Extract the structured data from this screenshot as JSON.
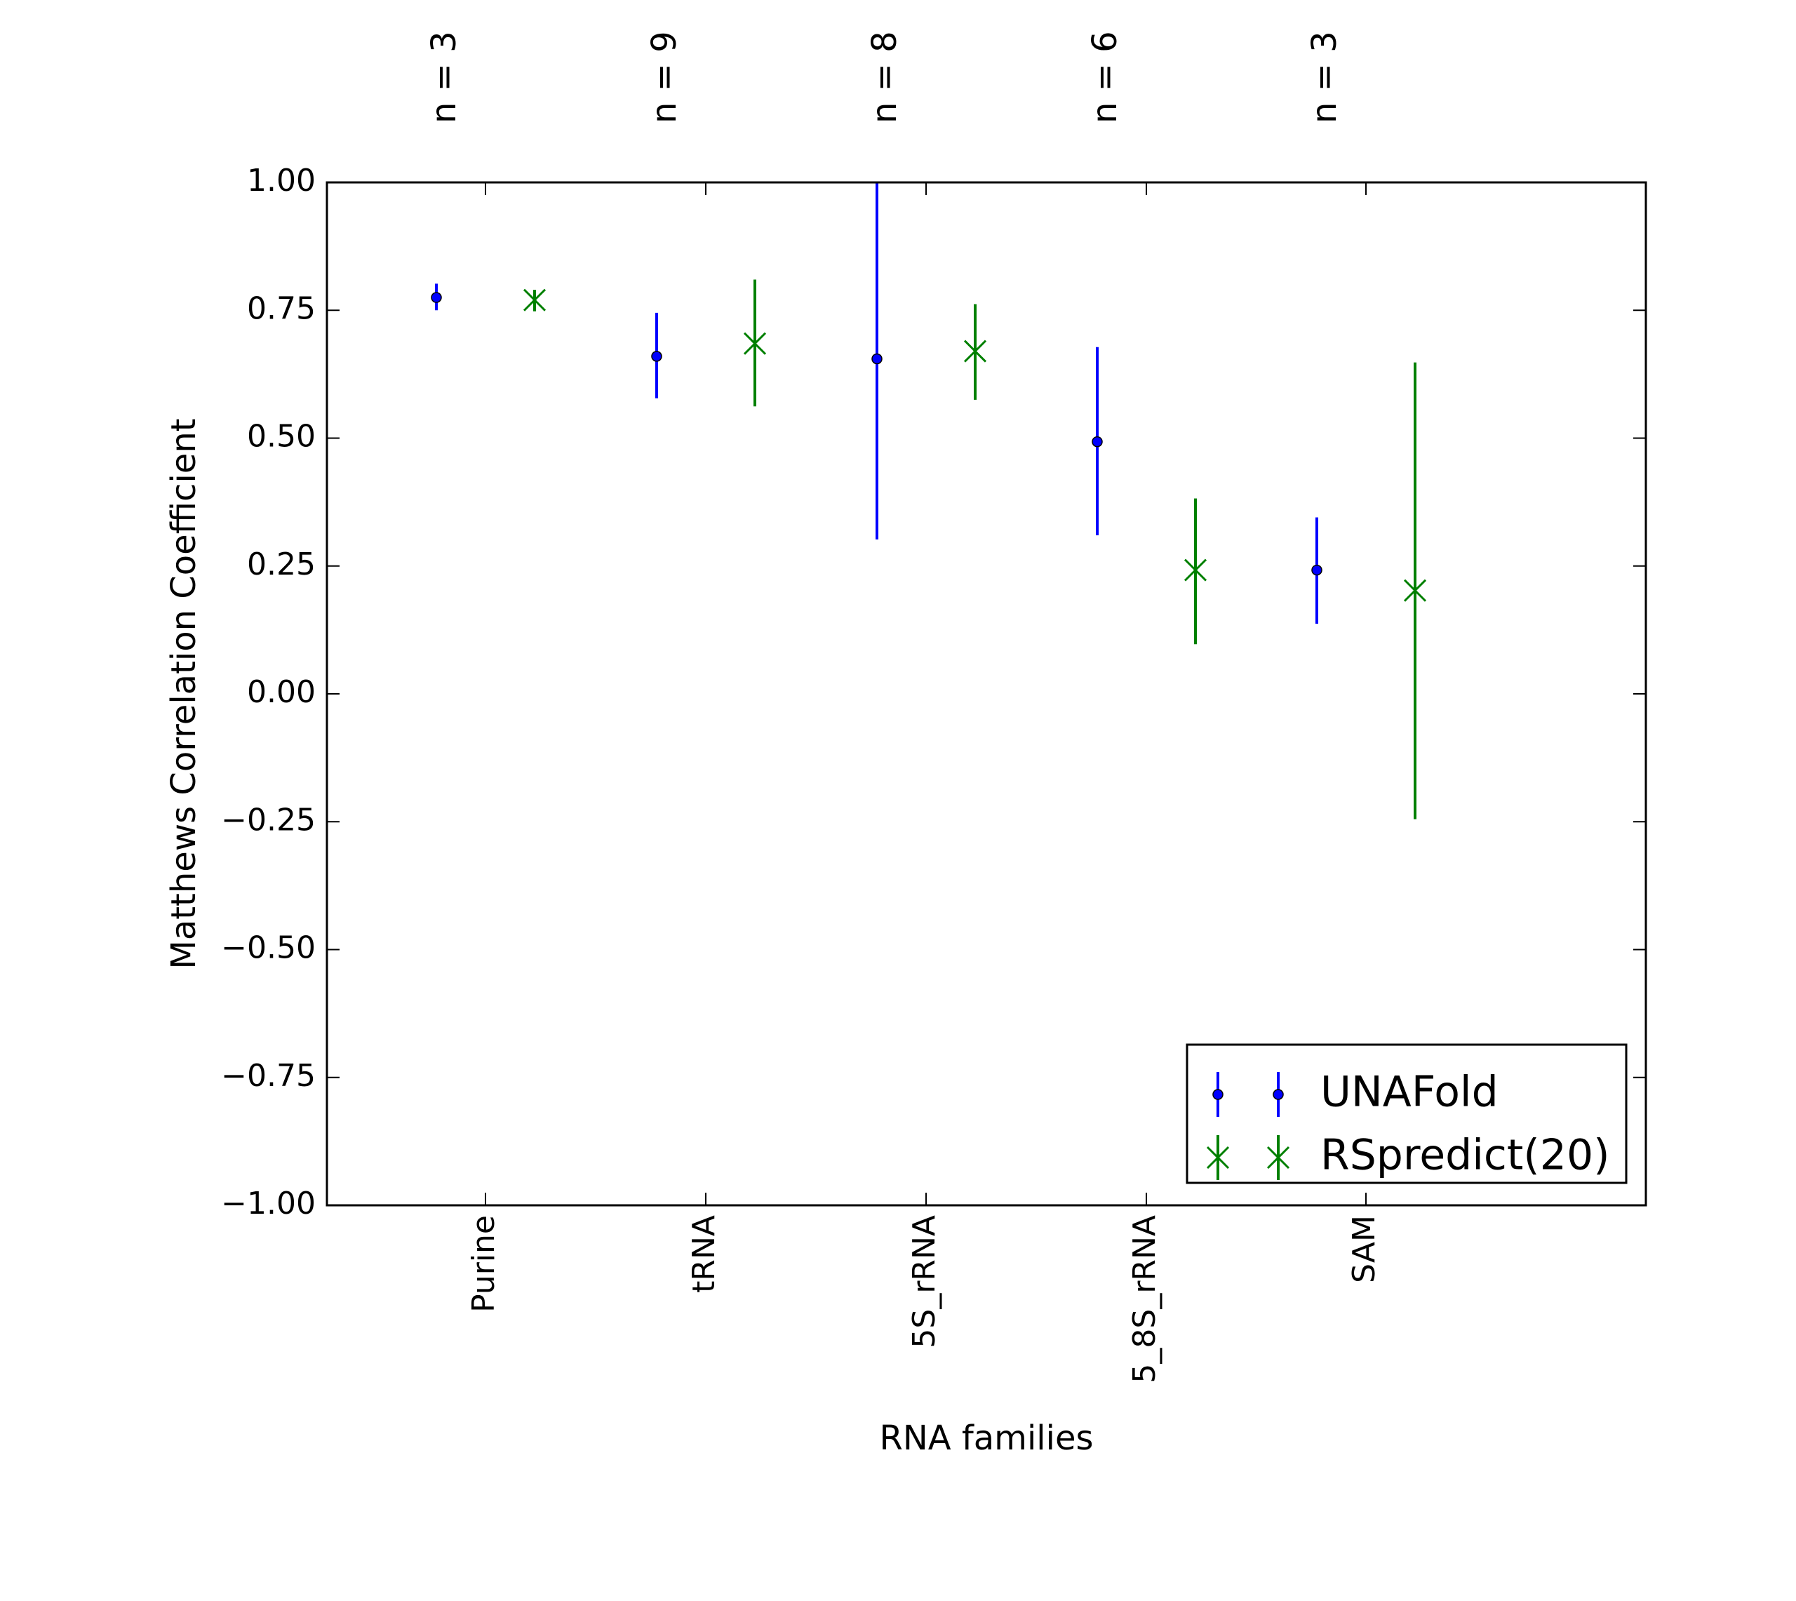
{
  "chart_data": {
    "type": "errorbar",
    "title": "",
    "xlabel": "RNA families",
    "ylabel": "Matthews Correlation Coefficient",
    "categories": [
      "Purine",
      "tRNA",
      "5S_rRNA",
      "5_8S_rRNA",
      "SAM"
    ],
    "n_labels": [
      "n = 3",
      "n = 9",
      "n = 8",
      "n = 6",
      "n = 3"
    ],
    "ylim": [
      -1.0,
      1.0
    ],
    "yticks": [
      "1.00",
      "0.75",
      "0.50",
      "0.25",
      "0.00",
      "−0.25",
      "−0.50",
      "−0.75",
      "−1.00"
    ],
    "ytick_values": [
      1.0,
      0.75,
      0.5,
      0.25,
      0.0,
      -0.25,
      -0.5,
      -0.75,
      -1.0
    ],
    "grid": false,
    "legend_position": "bottom-right",
    "series": [
      {
        "name": "UNAFold",
        "color": "#0000ff",
        "marker": "dot",
        "values": [
          0.775,
          0.66,
          0.655,
          0.493,
          0.242
        ],
        "err_low": [
          0.75,
          0.578,
          0.302,
          0.31,
          0.137
        ],
        "err_high": [
          0.802,
          0.745,
          1.0,
          0.678,
          0.345
        ]
      },
      {
        "name": "RSpredict(20)",
        "color": "#008000",
        "marker": "x",
        "values": [
          0.77,
          0.685,
          0.67,
          0.242,
          0.202
        ],
        "err_low": [
          0.748,
          0.562,
          0.575,
          0.097,
          -0.245
        ],
        "err_high": [
          0.79,
          0.81,
          0.762,
          0.382,
          0.648
        ]
      }
    ]
  }
}
